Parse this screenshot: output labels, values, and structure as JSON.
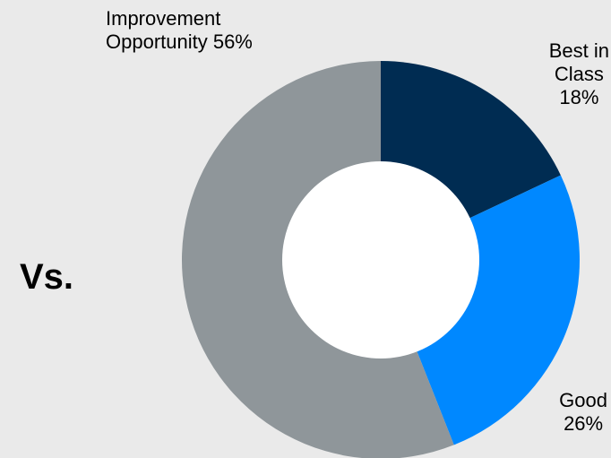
{
  "vs_text": "Vs.",
  "chart_data": {
    "type": "pie",
    "title": "",
    "slices": [
      {
        "name": "Best in Class",
        "value": 18,
        "value_label": "18%",
        "color": "#002c52"
      },
      {
        "name": "Good",
        "value": 26,
        "value_label": "26%",
        "color": "#0088ff"
      },
      {
        "name": "Improvement Opportunity",
        "value": 56,
        "value_label": "56%",
        "color": "#8f969a"
      }
    ],
    "labels": {
      "best_line1": "Best in",
      "best_line2": "Class",
      "best_line3": "18%",
      "good_line1": "Good",
      "good_line2": "26%",
      "improvement_line1": "Improvement",
      "improvement_line2": "Opportunity 56%"
    },
    "background": "#eaeaea",
    "hole_color": "#ffffff",
    "legend": "none"
  }
}
